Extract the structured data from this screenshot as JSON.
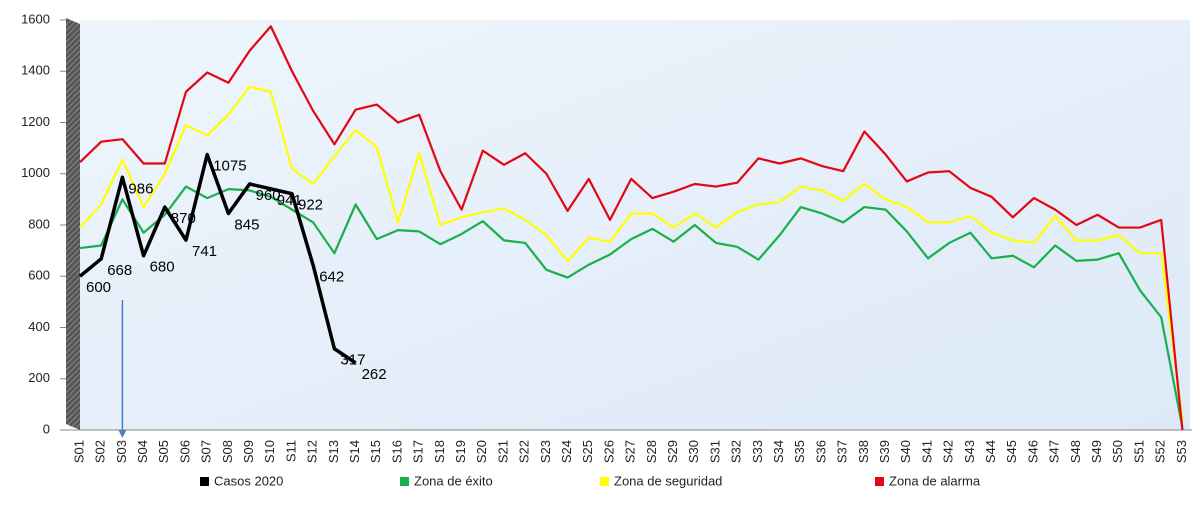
{
  "chart_data": {
    "type": "line",
    "categories": [
      "S01",
      "S02",
      "S03",
      "S04",
      "S05",
      "S06",
      "S07",
      "S08",
      "S09",
      "S10",
      "S11",
      "S12",
      "S13",
      "S14",
      "S15",
      "S16",
      "S17",
      "S18",
      "S19",
      "S20",
      "S21",
      "S22",
      "S23",
      "S24",
      "S25",
      "S26",
      "S27",
      "S28",
      "S29",
      "S30",
      "S31",
      "S32",
      "S33",
      "S34",
      "S35",
      "S36",
      "S37",
      "S38",
      "S39",
      "S40",
      "S41",
      "S42",
      "S43",
      "S44",
      "S45",
      "S46",
      "S47",
      "S48",
      "S49",
      "S50",
      "S51",
      "S52",
      "S53"
    ],
    "series": [
      {
        "name": "Casos 2020",
        "color": "#000000",
        "values": [
          600,
          668,
          986,
          680,
          870,
          741,
          1075,
          845,
          960,
          941,
          922,
          642,
          317,
          262,
          null,
          null,
          null,
          null,
          null,
          null,
          null,
          null,
          null,
          null,
          null,
          null,
          null,
          null,
          null,
          null,
          null,
          null,
          null,
          null,
          null,
          null,
          null,
          null,
          null,
          null,
          null,
          null,
          null,
          null,
          null,
          null,
          null,
          null,
          null,
          null,
          null,
          null,
          null
        ]
      },
      {
        "name": "Zona de éxito",
        "color": "#18b04a",
        "values": [
          710,
          720,
          900,
          770,
          840,
          950,
          905,
          940,
          935,
          910,
          860,
          810,
          690,
          880,
          745,
          780,
          775,
          725,
          765,
          815,
          740,
          730,
          625,
          595,
          645,
          685,
          745,
          785,
          735,
          800,
          730,
          715,
          665,
          760,
          870,
          845,
          810,
          870,
          860,
          775,
          670,
          730,
          770,
          670,
          680,
          635,
          720,
          660,
          665,
          690,
          545,
          440,
          10
        ]
      },
      {
        "name": "Zona de seguridad",
        "color": "#ffff00",
        "values": [
          790,
          880,
          1055,
          870,
          1000,
          1190,
          1150,
          1230,
          1340,
          1320,
          1020,
          960,
          1070,
          1170,
          1105,
          810,
          1080,
          800,
          830,
          850,
          865,
          820,
          760,
          660,
          750,
          735,
          845,
          845,
          790,
          845,
          790,
          850,
          880,
          890,
          950,
          935,
          895,
          960,
          900,
          870,
          810,
          810,
          835,
          770,
          740,
          730,
          835,
          740,
          740,
          760,
          690,
          690,
          40
        ]
      },
      {
        "name": "Zona de alarma",
        "color": "#e30613",
        "values": [
          1045,
          1125,
          1135,
          1040,
          1040,
          1320,
          1395,
          1355,
          1480,
          1575,
          1400,
          1245,
          1115,
          1250,
          1270,
          1200,
          1230,
          1010,
          860,
          1090,
          1035,
          1080,
          1000,
          855,
          980,
          820,
          980,
          905,
          930,
          960,
          950,
          965,
          1060,
          1040,
          1060,
          1030,
          1010,
          1165,
          1075,
          970,
          1005,
          1010,
          945,
          910,
          830,
          905,
          860,
          800,
          840,
          790,
          790,
          820,
          0
        ]
      }
    ],
    "ylim": [
      0,
      1600
    ],
    "yticks": [
      0,
      200,
      400,
      600,
      800,
      1000,
      1200,
      1400,
      1600
    ],
    "grid": false,
    "legend": "bottom"
  }
}
